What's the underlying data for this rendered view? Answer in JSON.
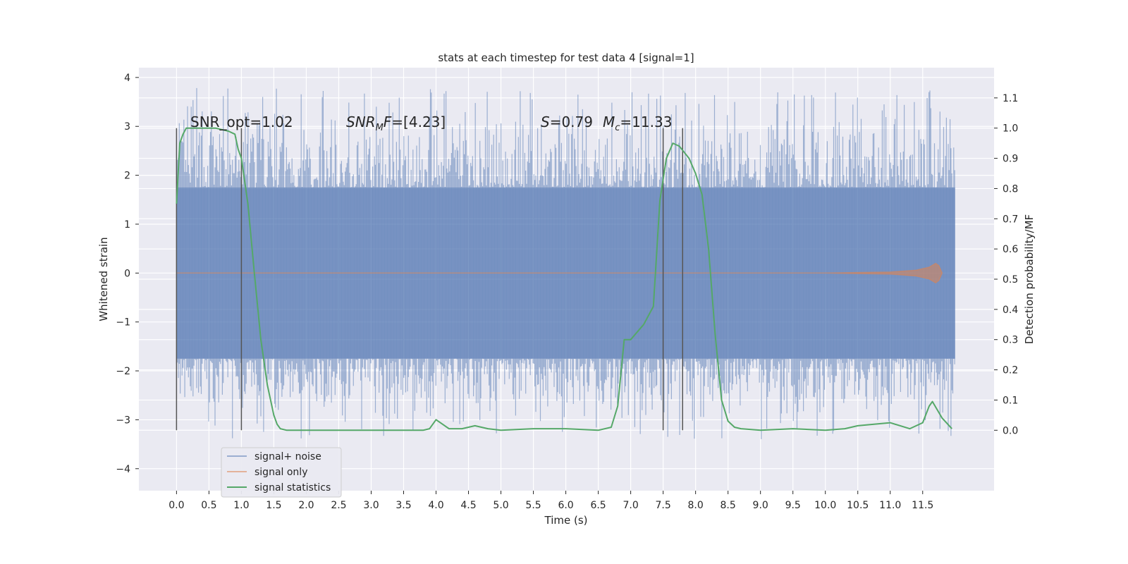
{
  "chart_data": {
    "type": "line",
    "title": "stats at each timestep for test data 4 [signal=1]",
    "xlabel": "Time (s)",
    "ylabel": "Whitened strain",
    "ylabel_right": "Detection probability/MF",
    "xlim": [
      -0.58,
      12.6
    ],
    "ylim": [
      -4.45,
      4.2
    ],
    "ylim_right": [
      -0.2,
      1.2
    ],
    "x_ticks": [
      "0.0",
      "0.5",
      "1.0",
      "1.5",
      "2.0",
      "2.5",
      "3.0",
      "3.5",
      "4.0",
      "4.5",
      "5.0",
      "5.5",
      "6.0",
      "6.5",
      "7.0",
      "7.5",
      "8.0",
      "8.5",
      "9.0",
      "9.5",
      "10.0",
      "10.5",
      "11.0",
      "11.5"
    ],
    "y_ticks": [
      "4",
      "3",
      "2",
      "1",
      "0",
      "−1",
      "−2",
      "−3",
      "−4"
    ],
    "y_ticks_right": [
      "1.1",
      "1.0",
      "0.9",
      "0.8",
      "0.7",
      "0.6",
      "0.5",
      "0.4",
      "0.3",
      "0.2",
      "0.1",
      "0.0"
    ],
    "grid": true,
    "legend_position": "lower-left",
    "colors": {
      "noise": "#4c72b0",
      "signal": "#dd8452",
      "stats": "#55a868",
      "background": "#eaeaf2",
      "grid": "#ffffff",
      "vlines": "#555555"
    },
    "series": [
      {
        "name": "signal+ noise",
        "kind": "band",
        "x_start": 0.0,
        "x_end": 12.0,
        "core_range": [
          -1.75,
          1.75
        ],
        "envelope_range": [
          -3.4,
          3.8
        ]
      },
      {
        "name": "signal only",
        "kind": "line",
        "x": [
          0.0,
          10.0,
          11.0,
          11.4,
          11.6,
          11.7,
          11.75,
          11.8
        ],
        "y": [
          0.0,
          0.0,
          0.02,
          0.06,
          0.12,
          0.2,
          0.15,
          0.0
        ]
      },
      {
        "name": "signal statistics",
        "axis": "right",
        "x": [
          0.0,
          0.05,
          0.1,
          0.15,
          0.25,
          0.4,
          0.6,
          0.8,
          0.9,
          0.95,
          1.0,
          1.1,
          1.2,
          1.3,
          1.4,
          1.5,
          1.55,
          1.6,
          1.7,
          2.0,
          3.0,
          3.8,
          3.9,
          4.0,
          4.1,
          4.2,
          4.4,
          4.6,
          4.8,
          5.0,
          5.5,
          6.0,
          6.5,
          6.7,
          6.8,
          6.9,
          7.0,
          7.2,
          7.35,
          7.45,
          7.55,
          7.65,
          7.75,
          7.9,
          8.0,
          8.1,
          8.2,
          8.3,
          8.4,
          8.5,
          8.6,
          8.7,
          9.0,
          9.5,
          10.0,
          10.3,
          10.5,
          11.0,
          11.3,
          11.5,
          11.6,
          11.65,
          11.8,
          11.95
        ],
        "y": [
          0.75,
          0.95,
          0.98,
          1.0,
          1.0,
          1.0,
          1.0,
          0.99,
          0.98,
          0.93,
          0.9,
          0.75,
          0.52,
          0.3,
          0.15,
          0.05,
          0.02,
          0.005,
          0.0,
          0.0,
          0.0,
          0.0,
          0.005,
          0.035,
          0.02,
          0.005,
          0.005,
          0.015,
          0.005,
          0.0,
          0.005,
          0.005,
          0.0,
          0.01,
          0.08,
          0.3,
          0.3,
          0.35,
          0.41,
          0.76,
          0.9,
          0.95,
          0.94,
          0.9,
          0.85,
          0.78,
          0.6,
          0.32,
          0.1,
          0.03,
          0.01,
          0.005,
          0.0,
          0.005,
          0.0,
          0.005,
          0.015,
          0.025,
          0.005,
          0.025,
          0.08,
          0.095,
          0.04,
          0.005
        ]
      }
    ],
    "vlines": [
      0.0,
      1.0,
      7.5,
      7.8
    ],
    "annotations": [
      {
        "text_plain": "SNR_opt=1.02",
        "x": 0.22,
        "y": 3.05
      },
      {
        "text_italic": "SNR",
        "sub": "M",
        "text_italic2": "F",
        "text_plain": "=[4.23]",
        "x": 2.62,
        "y": 3.05
      },
      {
        "text_italic": "S",
        "text_plain": "=0.79   ",
        "text_italic2": "M",
        "sub": "c",
        "text_plain2": "=11.33",
        "x": 5.62,
        "y": 3.05
      }
    ],
    "annotation_texts": [
      "SNR_opt=1.02",
      "SNR",
      "M",
      "F",
      "=[4.23]",
      "S",
      "=0.79",
      "M",
      "c",
      "=11.33"
    ]
  }
}
